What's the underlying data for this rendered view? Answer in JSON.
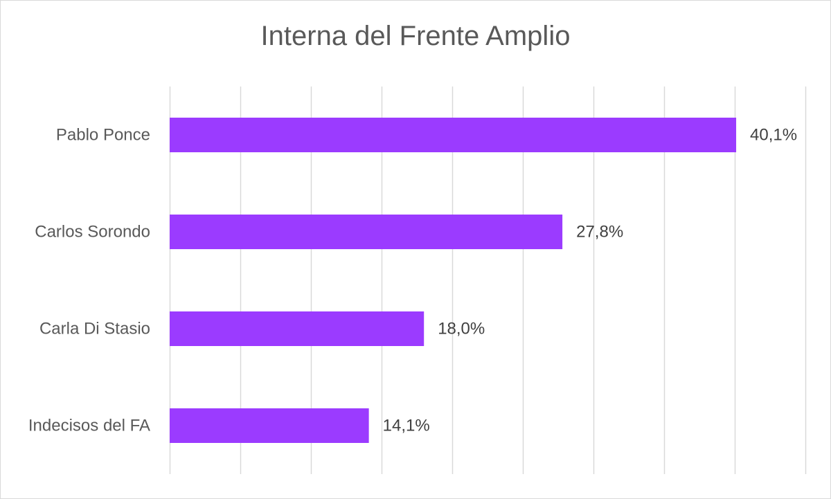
{
  "chart_data": {
    "type": "bar",
    "orientation": "horizontal",
    "title": "Interna del Frente Amplio",
    "categories": [
      "Pablo Ponce",
      "Carlos Sorondo",
      "Carla Di Stasio",
      "Indecisos del FA"
    ],
    "values": [
      40.1,
      27.8,
      18.0,
      14.1
    ],
    "data_labels": [
      "40,1%",
      "27,8%",
      "18,0%",
      "14,1%"
    ],
    "xlabel": "",
    "ylabel": "",
    "xlim": [
      0,
      45
    ],
    "grid": true,
    "legend": "none",
    "bar_color": "#9b3bff",
    "gridline_color": "#d9d9d9",
    "text_color": "#595959",
    "label_color": "#404040"
  }
}
